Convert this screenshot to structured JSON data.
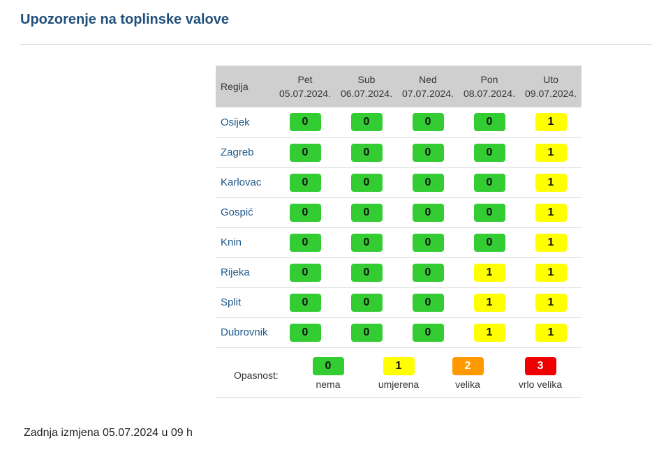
{
  "page": {
    "title": "Upozorenje na toplinske valove",
    "footer": "Zadnja izmjena 05.07.2024 u 09 h"
  },
  "table": {
    "region_header": "Regija",
    "days": [
      {
        "name": "Pet",
        "date": "05.07.2024."
      },
      {
        "name": "Sub",
        "date": "06.07.2024."
      },
      {
        "name": "Ned",
        "date": "07.07.2024."
      },
      {
        "name": "Pon",
        "date": "08.07.2024."
      },
      {
        "name": "Uto",
        "date": "09.07.2024."
      }
    ],
    "rows": [
      {
        "region": "Osijek",
        "levels": [
          "0",
          "0",
          "0",
          "0",
          "1"
        ]
      },
      {
        "region": "Zagreb",
        "levels": [
          "0",
          "0",
          "0",
          "0",
          "1"
        ]
      },
      {
        "region": "Karlovac",
        "levels": [
          "0",
          "0",
          "0",
          "0",
          "1"
        ]
      },
      {
        "region": "Gospić",
        "levels": [
          "0",
          "0",
          "0",
          "0",
          "1"
        ]
      },
      {
        "region": "Knin",
        "levels": [
          "0",
          "0",
          "0",
          "0",
          "1"
        ]
      },
      {
        "region": "Rijeka",
        "levels": [
          "0",
          "0",
          "0",
          "1",
          "1"
        ]
      },
      {
        "region": "Split",
        "levels": [
          "0",
          "0",
          "0",
          "1",
          "1"
        ]
      },
      {
        "region": "Dubrovnik",
        "levels": [
          "0",
          "0",
          "0",
          "1",
          "1"
        ]
      }
    ]
  },
  "legend": {
    "label": "Opasnost:",
    "items": [
      {
        "value": "0",
        "text": "nema"
      },
      {
        "value": "1",
        "text": "umjerena"
      },
      {
        "value": "2",
        "text": "velika"
      },
      {
        "value": "3",
        "text": "vrlo velika"
      }
    ]
  },
  "colors": {
    "title": "#1f4f7a",
    "region_link": "#1f5a8c",
    "level_0": "#33cc33",
    "level_1": "#ffff00",
    "level_2": "#ff9900",
    "level_3": "#ee0000",
    "header_bg": "#cfcfcf"
  }
}
